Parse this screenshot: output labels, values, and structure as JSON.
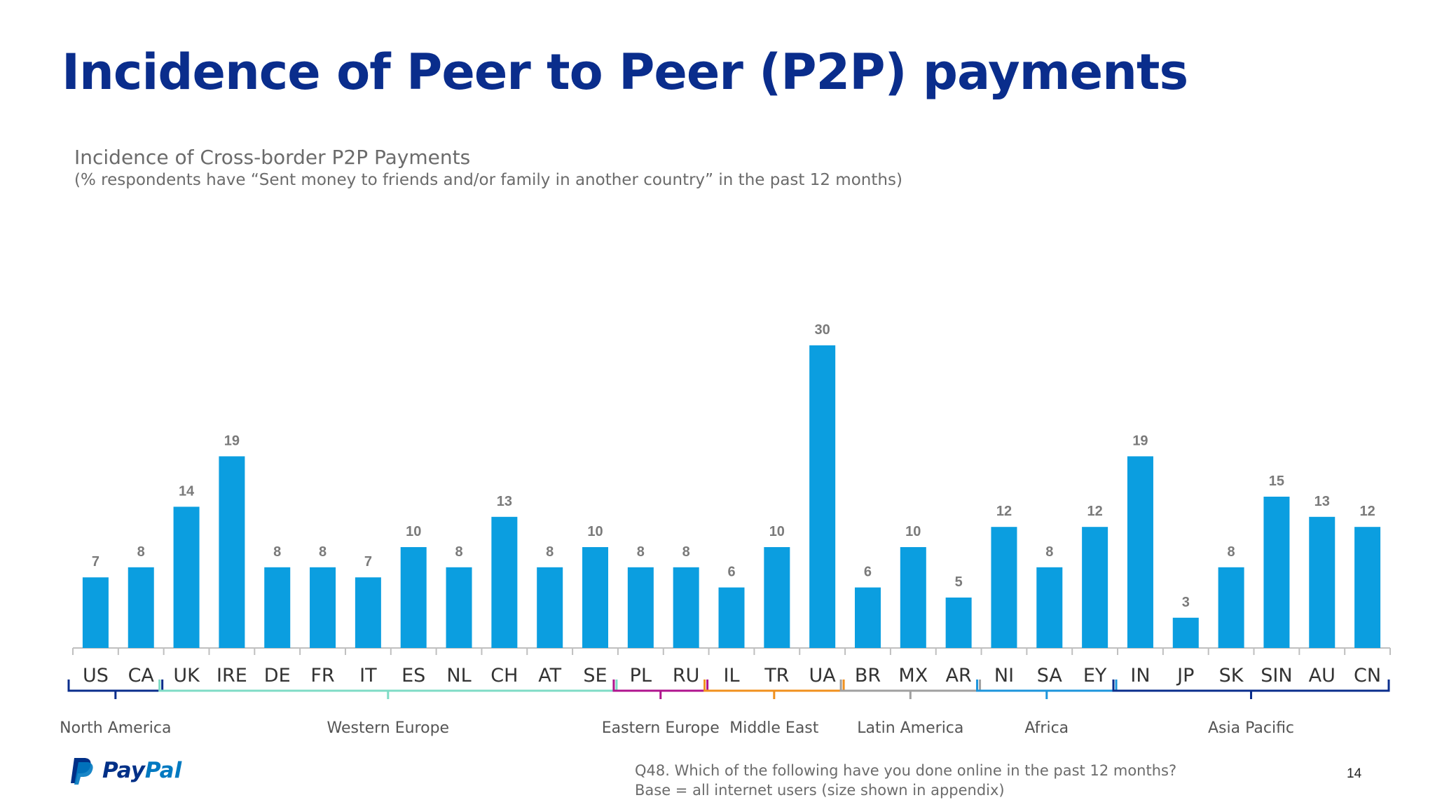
{
  "title": "Incidence of Peer to Peer (P2P) payments",
  "chart_data": {
    "type": "bar",
    "title": "Incidence of Cross-border P2P Payments",
    "subtitle": "(% respondents have “Sent money to friends and/or family in another country” in the past 12 months)",
    "categories": [
      "US",
      "CA",
      "UK",
      "IRE",
      "DE",
      "FR",
      "IT",
      "ES",
      "NL",
      "CH",
      "AT",
      "SE",
      "PL",
      "RU",
      "IL",
      "TR",
      "UA",
      "BR",
      "MX",
      "AR",
      "NI",
      "SA",
      "EY",
      "IN",
      "JP",
      "SK",
      "SIN",
      "AU",
      "CN"
    ],
    "values": [
      7,
      8,
      14,
      19,
      8,
      8,
      7,
      10,
      8,
      13,
      8,
      10,
      8,
      8,
      6,
      10,
      30,
      6,
      10,
      5,
      12,
      8,
      12,
      19,
      3,
      8,
      15,
      13,
      12
    ],
    "ylim": [
      0,
      36
    ],
    "bar_color": "#0b9ee0",
    "groups": [
      {
        "name": "North America",
        "start": 0,
        "end": 1,
        "color": "#0a2d8c"
      },
      {
        "name": "Western Europe",
        "start": 2,
        "end": 11,
        "color": "#7fdcc6"
      },
      {
        "name": "Eastern Europe",
        "start": 12,
        "end": 13,
        "color": "#b0148e"
      },
      {
        "name": "Middle East",
        "start": 14,
        "end": 16,
        "color": "#f0901e"
      },
      {
        "name": "Latin America",
        "start": 17,
        "end": 19,
        "color": "#a0a0a0"
      },
      {
        "name": "Africa",
        "start": 20,
        "end": 22,
        "color": "#1c95dc"
      },
      {
        "name": "Asia Pacific",
        "start": 23,
        "end": 28,
        "color": "#0a2d8c"
      }
    ]
  },
  "footnote": {
    "question": "Q48. Which of the following have you done online in the past 12 months?",
    "base": "Base = all internet users (size shown in appendix)"
  },
  "page_number": "14",
  "logo": {
    "part1": "Pay",
    "part2": "Pal"
  }
}
